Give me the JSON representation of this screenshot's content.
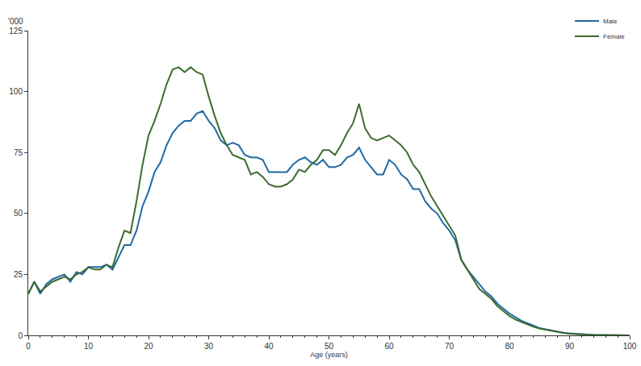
{
  "chart_data": {
    "type": "line",
    "x_label": "Age (years)",
    "y_label": "'000",
    "x": [
      0,
      1,
      2,
      3,
      4,
      5,
      6,
      7,
      8,
      9,
      10,
      11,
      12,
      13,
      14,
      15,
      16,
      17,
      18,
      19,
      20,
      21,
      22,
      23,
      24,
      25,
      26,
      27,
      28,
      29,
      30,
      31,
      32,
      33,
      34,
      35,
      36,
      37,
      38,
      39,
      40,
      41,
      42,
      43,
      44,
      45,
      46,
      47,
      48,
      49,
      50,
      51,
      52,
      53,
      54,
      55,
      56,
      57,
      58,
      59,
      60,
      61,
      62,
      63,
      64,
      65,
      66,
      67,
      68,
      69,
      70,
      71,
      72,
      73,
      74,
      75,
      76,
      77,
      78,
      79,
      80,
      81,
      82,
      83,
      84,
      85,
      86,
      87,
      88,
      89,
      90,
      91,
      92,
      93,
      94,
      95,
      96,
      97,
      98,
      99,
      100
    ],
    "series": [
      {
        "name": "Male",
        "color": "#1f6aa5",
        "values": [
          17,
          22,
          17,
          21,
          23,
          24,
          25,
          22,
          26,
          25,
          28,
          28,
          28,
          29,
          27,
          32,
          37,
          37,
          43,
          53,
          59,
          67,
          71,
          78,
          83,
          86,
          88,
          88,
          91,
          92,
          88,
          85,
          80,
          78,
          79,
          78,
          74,
          73,
          73,
          72,
          67,
          67,
          67,
          67,
          70,
          72,
          73,
          71,
          70,
          72,
          69,
          69,
          70,
          73,
          74,
          77,
          72,
          69,
          66,
          66,
          72,
          70,
          66,
          64,
          60,
          60,
          55,
          52,
          50,
          46,
          43,
          39,
          31,
          27,
          24,
          21,
          18,
          16,
          13,
          11,
          9,
          7.5,
          6,
          5,
          4,
          3,
          2.5,
          2,
          1.5,
          1.1,
          0.8,
          0.6,
          0.45,
          0.35,
          0.25,
          0.18,
          0.12,
          0.08,
          0.05,
          0.03,
          0.02
        ]
      },
      {
        "name": "Female",
        "color": "#3d6b2f",
        "values": [
          17,
          22,
          18,
          20,
          22,
          23,
          24,
          23,
          25,
          26,
          28,
          27,
          27,
          29,
          28,
          36,
          43,
          42,
          55,
          70,
          82,
          88,
          95,
          103,
          109,
          110,
          108,
          110,
          108,
          107,
          98,
          90,
          83,
          78,
          74,
          73,
          72,
          66,
          67,
          65,
          62,
          61,
          61,
          62,
          64,
          68,
          67,
          70,
          72,
          76,
          76,
          74,
          78,
          83,
          87,
          95,
          85,
          81,
          80,
          81,
          82,
          80,
          78,
          75,
          70,
          67,
          62,
          57,
          53,
          49,
          45,
          41,
          31,
          27,
          23,
          19,
          17,
          15,
          12,
          10,
          8,
          6.5,
          5.5,
          4.5,
          3.5,
          2.8,
          2.3,
          1.8,
          1.3,
          1.0,
          0.7,
          0.5,
          0.4,
          0.3,
          0.2,
          0.15,
          0.1,
          0.07,
          0.05,
          0.03,
          0.02
        ]
      }
    ],
    "xlim": [
      0,
      100
    ],
    "ylim": [
      0,
      125
    ],
    "xticks": [
      0,
      10,
      20,
      30,
      40,
      50,
      60,
      70,
      80,
      90,
      100
    ],
    "yticks": [
      0,
      25,
      50,
      75,
      100,
      125
    ],
    "grid": false,
    "legend": "top right"
  }
}
